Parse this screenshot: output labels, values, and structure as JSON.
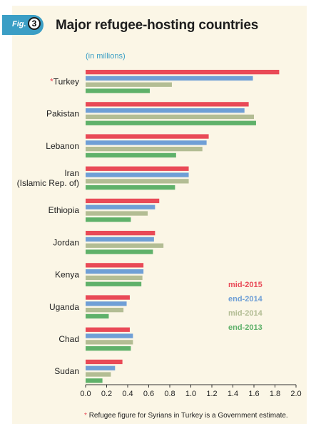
{
  "figure": {
    "badge_label": "Fig.",
    "number": "3"
  },
  "title": "Major refugee-hosting countries",
  "footnote": {
    "star": "*",
    "text": "Refugee figure for Syrians in Turkey is a Government estimate."
  },
  "colors": {
    "mid-2015": "#e94a57",
    "end-2014": "#6f9fd6",
    "mid-2014": "#b3bd94",
    "end-2013": "#5fb16a",
    "badge": "#3b9ec5"
  },
  "chart_data": {
    "type": "bar",
    "orientation": "horizontal",
    "unit_label": "(in millions)",
    "categories": [
      "Turkey",
      "Pakistan",
      "Lebanon",
      "Iran (Islamic Rep. of)",
      "Ethiopia",
      "Jordan",
      "Kenya",
      "Uganda",
      "Chad",
      "Sudan"
    ],
    "category_display": [
      {
        "star": "*",
        "lines": [
          "Turkey"
        ]
      },
      {
        "star": "",
        "lines": [
          "Pakistan"
        ]
      },
      {
        "star": "",
        "lines": [
          "Lebanon"
        ]
      },
      {
        "star": "",
        "lines": [
          "Iran",
          "(Islamic Rep. of)"
        ]
      },
      {
        "star": "",
        "lines": [
          "Ethiopia"
        ]
      },
      {
        "star": "",
        "lines": [
          "Jordan"
        ]
      },
      {
        "star": "",
        "lines": [
          "Kenya"
        ]
      },
      {
        "star": "",
        "lines": [
          "Uganda"
        ]
      },
      {
        "star": "",
        "lines": [
          "Chad"
        ]
      },
      {
        "star": "",
        "lines": [
          "Sudan"
        ]
      }
    ],
    "series": [
      {
        "name": "mid-2015",
        "color": "#e94a57",
        "values": [
          1.84,
          1.55,
          1.17,
          0.98,
          0.7,
          0.66,
          0.55,
          0.42,
          0.42,
          0.35
        ]
      },
      {
        "name": "end-2014",
        "color": "#6f9fd6",
        "values": [
          1.59,
          1.51,
          1.15,
          0.98,
          0.66,
          0.65,
          0.55,
          0.39,
          0.45,
          0.28
        ]
      },
      {
        "name": "mid-2014",
        "color": "#b3bd94",
        "values": [
          0.82,
          1.6,
          1.11,
          0.98,
          0.59,
          0.74,
          0.54,
          0.36,
          0.45,
          0.24
        ]
      },
      {
        "name": "end-2013",
        "color": "#5fb16a",
        "values": [
          0.61,
          1.62,
          0.86,
          0.85,
          0.43,
          0.64,
          0.53,
          0.22,
          0.43,
          0.16
        ]
      }
    ],
    "xlim": [
      0.0,
      2.0
    ],
    "x_ticks": [
      "0.0",
      "0.2",
      "0.4",
      "0.6",
      "0.8",
      "1.0",
      "1.2",
      "1.4",
      "1.6",
      "1.8",
      "2.0"
    ],
    "grid": false,
    "legend_position": "right, lower-middle"
  }
}
